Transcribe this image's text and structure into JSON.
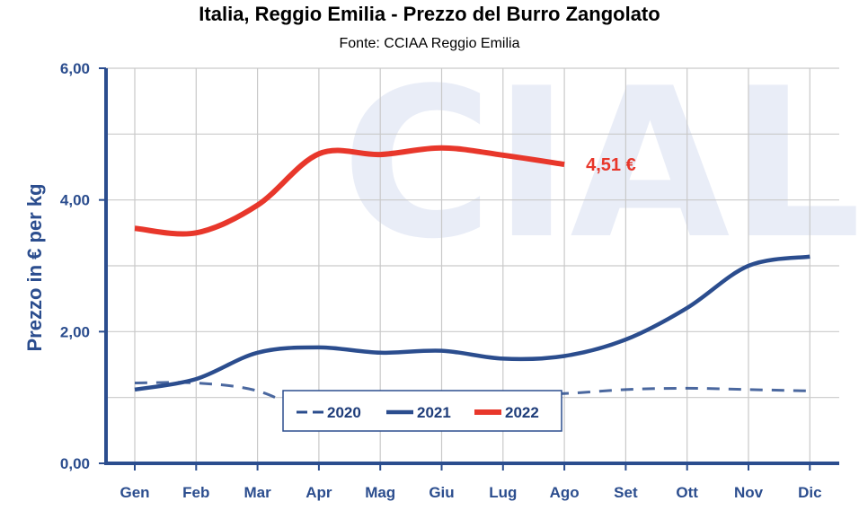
{
  "chart_data": {
    "type": "line",
    "title": "Italia, Reggio Emilia - Prezzo del Burro Zangolato",
    "subtitle": "Fonte: CCIAA Reggio Emilia",
    "ylabel": "Prezzo in € per kg",
    "xlabel": "",
    "categories": [
      "Gen",
      "Feb",
      "Mar",
      "Apr",
      "Mag",
      "Giu",
      "Lug",
      "Ago",
      "Set",
      "Ott",
      "Nov",
      "Dic"
    ],
    "yticks": [
      "0,00",
      "2,00",
      "4,00",
      "6,00"
    ],
    "ylim": [
      0,
      6
    ],
    "grid": true,
    "watermark": "CIAL",
    "legend_position": "bottom-center",
    "series": [
      {
        "name": "2020",
        "color": "#2b4d8e",
        "style": "dashed",
        "values": [
          1.22,
          1.22,
          1.1,
          0.72,
          0.62,
          0.9,
          1.04,
          1.06,
          1.12,
          1.14,
          1.12,
          1.1
        ]
      },
      {
        "name": "2021",
        "color": "#2b4d8e",
        "style": "solid",
        "values": [
          1.12,
          1.28,
          1.68,
          1.76,
          1.68,
          1.71,
          1.59,
          1.63,
          1.88,
          2.36,
          3.0,
          3.14
        ]
      },
      {
        "name": "2022",
        "color": "#e8372b",
        "style": "solid",
        "values": [
          3.57,
          3.5,
          3.92,
          4.7,
          4.69,
          4.79,
          4.68,
          4.54,
          null,
          null,
          null,
          null
        ]
      }
    ],
    "annotations": [
      {
        "text": "4,51 €"
      }
    ]
  }
}
